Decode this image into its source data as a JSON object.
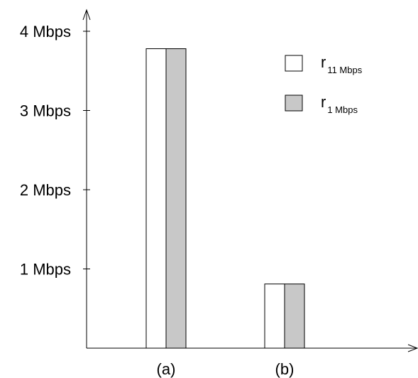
{
  "chart_data": {
    "type": "bar",
    "categories": [
      "(a)",
      "(b)"
    ],
    "series": [
      {
        "name": "r11 Mbps",
        "legend_main": "r",
        "legend_sub": "11 Mbps",
        "values": [
          3.78,
          0.81
        ],
        "color": "#ffffff"
      },
      {
        "name": "r1 Mbps",
        "legend_main": "r",
        "legend_sub": "1 Mbps",
        "values": [
          3.78,
          0.81
        ],
        "color": "#c8c8c8"
      }
    ],
    "y_ticks": [
      {
        "value": 1,
        "label": "1 Mbps"
      },
      {
        "value": 2,
        "label": "2 Mbps"
      },
      {
        "value": 3,
        "label": "3 Mbps"
      },
      {
        "value": 4,
        "label": "4 Mbps"
      }
    ],
    "ylim": [
      0,
      4.3
    ],
    "grid": false,
    "legend_position": "top-right",
    "title": "",
    "xlabel": "",
    "ylabel": ""
  }
}
